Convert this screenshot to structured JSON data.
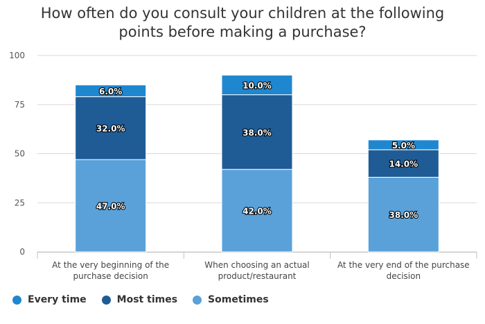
{
  "chart_data": {
    "type": "bar",
    "stacked": true,
    "title_lines": [
      "How often do you consult your children at the following",
      "points before making a purchase?"
    ],
    "categories": [
      [
        "At the very beginning of the",
        "purchase decision"
      ],
      [
        "When choosing an actual",
        "product/restaurant"
      ],
      [
        "At the very end of the purchase",
        "decision"
      ]
    ],
    "series": [
      {
        "name": "Sometimes",
        "values": [
          47,
          42,
          38
        ],
        "labels": [
          "47.0%",
          "42.0%",
          "38.0%"
        ],
        "color": "#5aa1d9"
      },
      {
        "name": "Most times",
        "values": [
          32,
          38,
          14
        ],
        "labels": [
          "32.0%",
          "38.0%",
          "14.0%"
        ],
        "color": "#1f5c96"
      },
      {
        "name": "Every time",
        "values": [
          6,
          10,
          5
        ],
        "labels": [
          "6.0%",
          "10.0%",
          "5.0%"
        ],
        "color": "#1f87d0"
      }
    ],
    "legend_order": [
      "Every time",
      "Most times",
      "Sometimes"
    ],
    "ylim": [
      0,
      100
    ],
    "yticks": [
      0,
      25,
      50,
      75,
      100
    ],
    "grid": true,
    "legend_position": "bottom-left"
  }
}
